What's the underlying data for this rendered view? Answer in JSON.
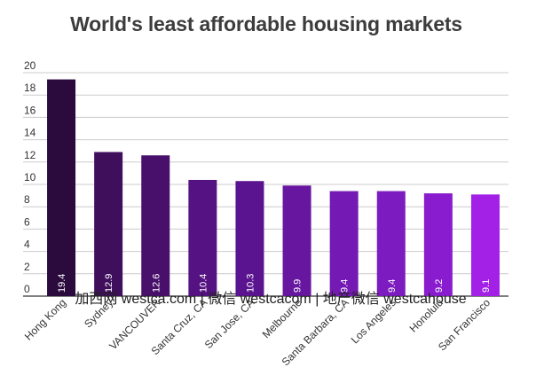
{
  "chart_data": {
    "type": "bar",
    "title": "World's least affordable housing markets",
    "xlabel": "",
    "ylabel": "",
    "ylim": [
      0,
      20
    ],
    "yticks": [
      0,
      2,
      4,
      6,
      8,
      10,
      12,
      14,
      16,
      18,
      20
    ],
    "grid": true,
    "legend": "none",
    "categories": [
      "Hong Kong",
      "Sydney",
      "VANCOUVER",
      "Santa Cruz, CA",
      "San Jose, CA",
      "Melbourne",
      "Santa Barbara, CA",
      "Los Angeles",
      "Honolulu",
      "San Francisco"
    ],
    "values": [
      19.4,
      12.9,
      12.6,
      10.4,
      10.3,
      9.9,
      9.4,
      9.4,
      9.2,
      9.1
    ],
    "data_labels": [
      "19.4",
      "12.9",
      "12.6",
      "10.4",
      "10.3",
      "9.9",
      "9.4",
      "9.4",
      "9.2",
      "9.1"
    ],
    "colors": [
      "#2b0a3d",
      "#3f0f5c",
      "#48106b",
      "#551282",
      "#5b1490",
      "#66169f",
      "#7419b3",
      "#7c1bbf",
      "#891ccf",
      "#a321e6"
    ],
    "grid_color": "#cccccc",
    "axis_color": "#333333"
  },
  "watermark": "加西网 westca.com | 微信 westcacom | 地产微信 westcahouse"
}
